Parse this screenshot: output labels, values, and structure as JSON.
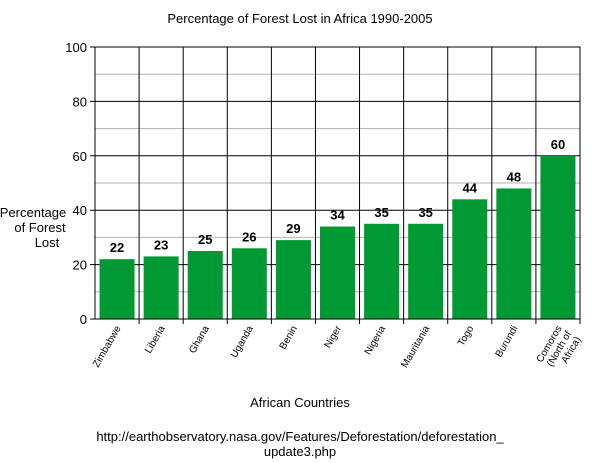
{
  "chart_data": {
    "type": "bar",
    "title": "Percentage of Forest Lost in Africa 1990-2005",
    "xlabel": "African Countries",
    "ylabel_lines": [
      "Percentage",
      "of Forest",
      "Lost"
    ],
    "categories": [
      [
        "Zimbabwe"
      ],
      [
        "Liberia"
      ],
      [
        "Ghana"
      ],
      [
        "Uganda"
      ],
      [
        "Benin"
      ],
      [
        "Niger"
      ],
      [
        "Nigeria"
      ],
      [
        "Mauritania"
      ],
      [
        "Togo"
      ],
      [
        "Burundi"
      ],
      [
        "Comoros",
        "(North of",
        "Africa)"
      ]
    ],
    "values": [
      22,
      23,
      25,
      26,
      29,
      34,
      35,
      35,
      44,
      48,
      60
    ],
    "ylim": [
      0,
      100
    ],
    "yticks": [
      0,
      20,
      40,
      60,
      80,
      100
    ],
    "minor_gridlines": [
      10,
      30,
      50,
      70,
      90
    ],
    "bar_color": "#009933",
    "grid": true,
    "source_lines": [
      "http://earthobservatory.nasa.gov/Features/Deforestation/deforestation_",
      "update3.php"
    ]
  }
}
